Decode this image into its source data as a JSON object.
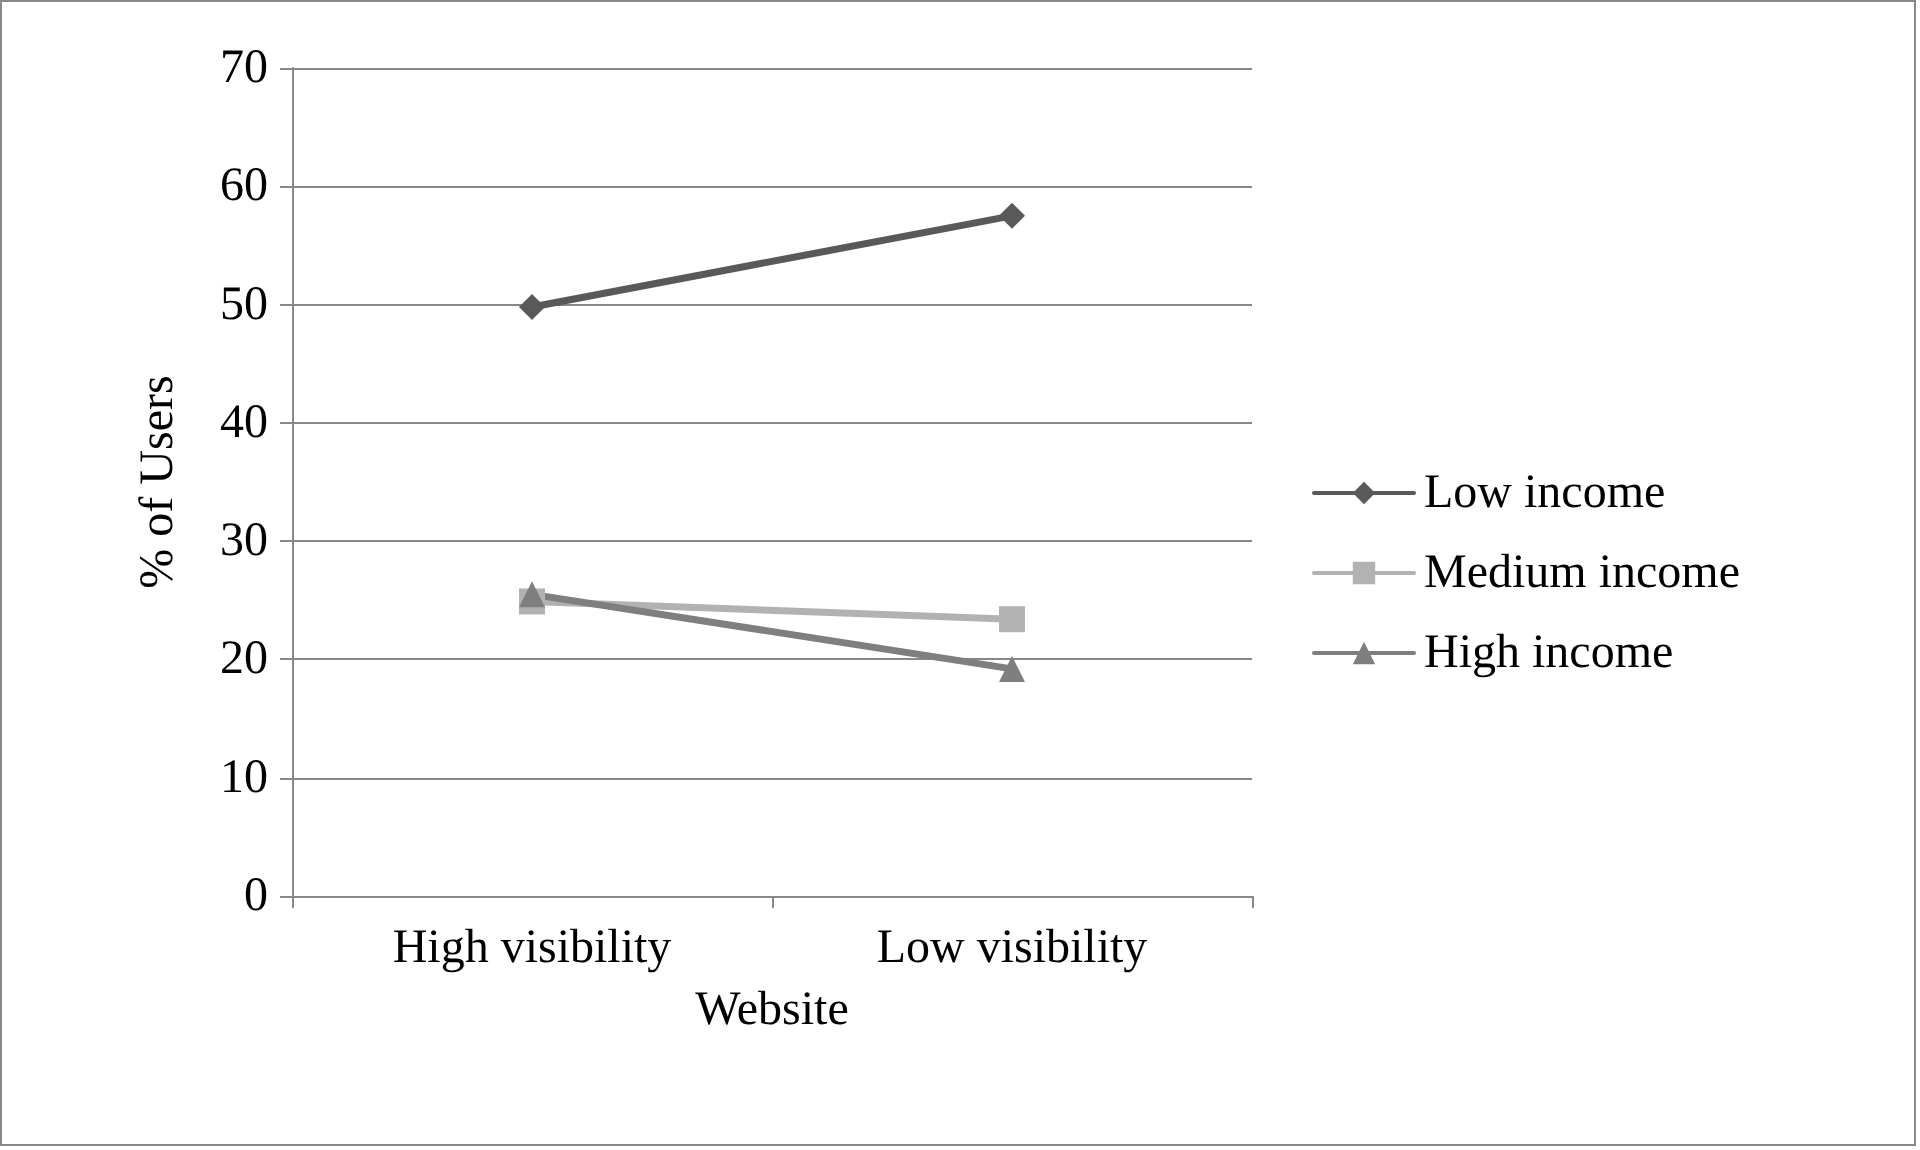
{
  "chart_data": {
    "type": "line",
    "xlabel": "Website",
    "ylabel": "% of Users",
    "categories": [
      "High visibility",
      "Low visibility"
    ],
    "series": [
      {
        "name": "Low income",
        "color": "#595959",
        "marker": "diamond",
        "values": [
          49.8,
          57.5
        ]
      },
      {
        "name": "Medium income",
        "color": "#b2b2b2",
        "marker": "square",
        "values": [
          24.9,
          23.4
        ]
      },
      {
        "name": "High income",
        "color": "#7f7f7f",
        "marker": "triangle",
        "values": [
          25.5,
          19.2
        ]
      }
    ],
    "ylim": [
      0,
      70
    ],
    "yticks": [
      0,
      10,
      20,
      30,
      40,
      50,
      60,
      70
    ],
    "grid": "y",
    "legend": "right",
    "line_style": "solid"
  }
}
